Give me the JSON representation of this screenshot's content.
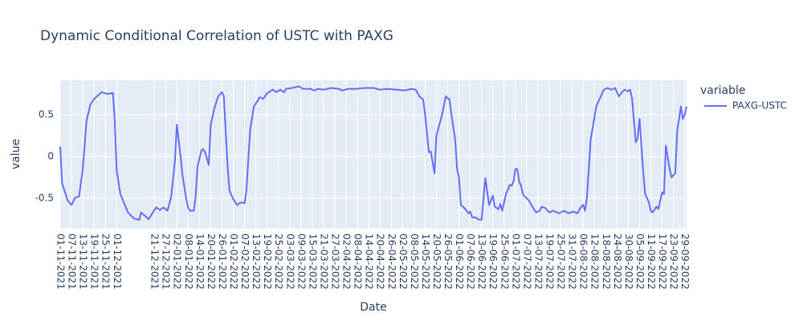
{
  "chart_data": {
    "type": "line",
    "title": "Dynamic Conditional Correlation of USTC with PAXG",
    "x_label": "Date",
    "y_label": "value",
    "legend_title": "variable",
    "xlim": [
      "01-11-2021",
      "30-09-2022"
    ],
    "ylim": [
      -0.865,
      0.913
    ],
    "yticks": [
      -0.5,
      0,
      0.5
    ],
    "xticks": [
      "01-11-2021",
      "07-11-2021",
      "13-11-2021",
      "19-11-2021",
      "25-11-2021",
      "01-12-2021",
      "21-12-2021",
      "27-12-2021",
      "02-01-2022",
      "08-01-2022",
      "14-01-2022",
      "20-01-2022",
      "26-01-2022",
      "01-02-2022",
      "07-02-2022",
      "13-02-2022",
      "19-02-2022",
      "25-02-2022",
      "03-03-2022",
      "09-03-2022",
      "15-03-2022",
      "21-03-2022",
      "27-03-2022",
      "02-04-2022",
      "08-04-2022",
      "14-04-2022",
      "20-04-2022",
      "26-04-2022",
      "02-05-2022",
      "08-05-2022",
      "14-05-2022",
      "20-05-2022",
      "26-05-2022",
      "01-06-2022",
      "07-06-2022",
      "13-06-2022",
      "19-06-2022",
      "25-06-2022",
      "01-07-2022",
      "07-07-2022",
      "13-07-2022",
      "19-07-2022",
      "25-07-2022",
      "31-07-2022",
      "06-08-2022",
      "12-08-2022",
      "18-08-2022",
      "24-08-2022",
      "30-08-2022",
      "05-09-2022",
      "11-09-2022",
      "17-09-2022",
      "23-09-2022",
      "29-09-2022"
    ],
    "grid": true,
    "legend_position": "right",
    "x": [
      "01-11-2021",
      "02-11-2021",
      "05-11-2021",
      "07-11-2021",
      "09-11-2021",
      "11-11-2021",
      "13-11-2021",
      "15-11-2021",
      "17-11-2021",
      "19-11-2021",
      "21-11-2021",
      "23-11-2021",
      "26-11-2021",
      "29-11-2021",
      "30-11-2021",
      "01-12-2021",
      "03-12-2021",
      "07-12-2021",
      "10-12-2021",
      "13-12-2021",
      "14-12-2021",
      "18-12-2021",
      "22-12-2021",
      "24-12-2021",
      "26-12-2021",
      "28-12-2021",
      "30-12-2021",
      "01-01-2022",
      "02-01-2022",
      "04-01-2022",
      "05-01-2022",
      "07-01-2022",
      "08-01-2022",
      "09-01-2022",
      "11-01-2022",
      "12-01-2022",
      "13-01-2022",
      "14-01-2022",
      "15-01-2022",
      "16-01-2022",
      "17-01-2022",
      "19-01-2022",
      "20-01-2022",
      "22-01-2022",
      "24-01-2022",
      "26-01-2022",
      "27-01-2022",
      "29-01-2022",
      "30-01-2022",
      "01-02-2022",
      "03-02-2022",
      "05-02-2022",
      "07-02-2022",
      "08-02-2022",
      "09-02-2022",
      "10-02-2022",
      "12-02-2022",
      "14-02-2022",
      "15-02-2022",
      "17-02-2022",
      "19-02-2022",
      "20-02-2022",
      "22-02-2022",
      "24-02-2022",
      "26-02-2022",
      "28-02-2022",
      "01-03-2022",
      "04-03-2022",
      "08-03-2022",
      "10-03-2022",
      "14-03-2022",
      "16-03-2022",
      "18-03-2022",
      "21-03-2022",
      "25-03-2022",
      "29-03-2022",
      "31-03-2022",
      "03-04-2022",
      "07-04-2022",
      "12-04-2022",
      "17-04-2022",
      "20-04-2022",
      "24-04-2022",
      "29-04-2022",
      "03-05-2022",
      "07-05-2022",
      "09-05-2022",
      "11-05-2022",
      "13-05-2022",
      "14-05-2022",
      "16-05-2022",
      "17-05-2022",
      "19-05-2022",
      "20-05-2022",
      "23-05-2022",
      "25-05-2022",
      "27-05-2022",
      "28-05-2022",
      "30-05-2022",
      "31-05-2022",
      "01-06-2022",
      "02-06-2022",
      "04-06-2022",
      "06-06-2022",
      "07-06-2022",
      "08-06-2022",
      "10-06-2022",
      "11-06-2022",
      "13-06-2022",
      "15-06-2022",
      "17-06-2022",
      "19-06-2022",
      "20-06-2022",
      "22-06-2022",
      "23-06-2022",
      "24-06-2022",
      "26-06-2022",
      "28-06-2022",
      "29-06-2022",
      "30-06-2022",
      "01-07-2022",
      "02-07-2022",
      "03-07-2022",
      "04-07-2022",
      "05-07-2022",
      "06-07-2022",
      "08-07-2022",
      "10-07-2022",
      "12-07-2022",
      "14-07-2022",
      "15-07-2022",
      "17-07-2022",
      "19-07-2022",
      "21-07-2022",
      "24-07-2022",
      "27-07-2022",
      "29-07-2022",
      "01-08-2022",
      "03-08-2022",
      "05-08-2022",
      "06-08-2022",
      "07-08-2022",
      "08-08-2022",
      "10-08-2022",
      "13-08-2022",
      "15-08-2022",
      "17-08-2022",
      "19-08-2022",
      "21-08-2022",
      "23-08-2022",
      "25-08-2022",
      "26-08-2022",
      "28-08-2022",
      "30-08-2022",
      "31-08-2022",
      "01-09-2022",
      "03-09-2022",
      "04-09-2022",
      "05-09-2022",
      "07-09-2022",
      "08-09-2022",
      "10-09-2022",
      "11-09-2022",
      "12-09-2022",
      "14-09-2022",
      "15-09-2022",
      "17-09-2022",
      "18-09-2022",
      "19-09-2022",
      "21-09-2022",
      "22-09-2022",
      "24-09-2022",
      "25-09-2022",
      "27-09-2022",
      "28-09-2022",
      "29-09-2022",
      "30-09-2022"
    ],
    "series": [
      {
        "name": "PAXG-USTC",
        "color": "#636efa",
        "values": [
          0.12,
          -0.32,
          -0.53,
          -0.58,
          -0.49,
          -0.48,
          -0.15,
          0.43,
          0.62,
          0.69,
          0.73,
          0.77,
          0.75,
          0.76,
          0.43,
          -0.17,
          -0.45,
          -0.67,
          -0.74,
          -0.76,
          -0.67,
          -0.75,
          -0.61,
          -0.64,
          -0.61,
          -0.65,
          -0.48,
          -0.05,
          0.38,
          0,
          -0.22,
          -0.51,
          -0.61,
          -0.65,
          -0.65,
          -0.48,
          -0.12,
          -0.03,
          0.07,
          0.09,
          0.05,
          -0.1,
          0.38,
          0.58,
          0.72,
          0.77,
          0.72,
          -0.13,
          -0.41,
          -0.51,
          -0.58,
          -0.55,
          -0.56,
          -0.41,
          -0.03,
          0.32,
          0.6,
          0.67,
          0.71,
          0.69,
          0.76,
          0.77,
          0.8,
          0.77,
          0.8,
          0.77,
          0.81,
          0.82,
          0.84,
          0.81,
          0.81,
          0.79,
          0.81,
          0.8,
          0.82,
          0.81,
          0.79,
          0.81,
          0.81,
          0.82,
          0.82,
          0.8,
          0.81,
          0.8,
          0.79,
          0.81,
          0.8,
          0.72,
          0.68,
          0.5,
          0.05,
          0.06,
          -0.2,
          0.25,
          0.5,
          0.72,
          0.68,
          0.5,
          0.2,
          -0.15,
          -0.25,
          -0.58,
          -0.62,
          -0.68,
          -0.66,
          -0.73,
          -0.73,
          -0.75,
          -0.76,
          -0.26,
          -0.58,
          -0.47,
          -0.6,
          -0.63,
          -0.57,
          -0.65,
          -0.45,
          -0.34,
          -0.35,
          -0.3,
          -0.15,
          -0.15,
          -0.3,
          -0.35,
          -0.45,
          -0.48,
          -0.52,
          -0.6,
          -0.67,
          -0.65,
          -0.6,
          -0.62,
          -0.67,
          -0.65,
          -0.68,
          -0.65,
          -0.68,
          -0.66,
          -0.68,
          -0.6,
          -0.58,
          -0.65,
          -0.5,
          0.2,
          0.6,
          0.7,
          0.8,
          0.82,
          0.8,
          0.82,
          0.72,
          0.75,
          0.8,
          0.78,
          0.8,
          0.7,
          0.17,
          0.22,
          0.45,
          -0.2,
          -0.45,
          -0.55,
          -0.65,
          -0.67,
          -0.6,
          -0.63,
          -0.43,
          -0.45,
          0.13,
          -0.15,
          -0.25,
          -0.2,
          0.3,
          0.6,
          0.45,
          0.5,
          0.6
        ]
      }
    ]
  }
}
